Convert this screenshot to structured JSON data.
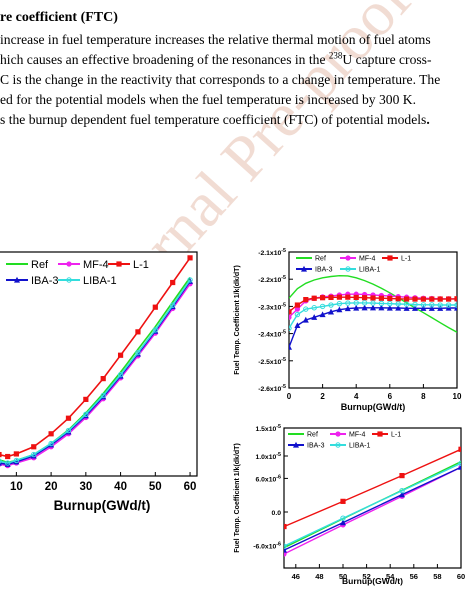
{
  "watermark": "Journal Pre-proof",
  "heading": "re coefficient (FTC)",
  "paragraph": {
    "line1": " increase in fuel temperature increases the relative thermal motion of fuel atoms",
    "line2_before": "hich causes an effective broadening of the resonances in the ",
    "line2_sup": "238",
    "line2_after": "U capture cross-",
    "line3": "C is the change in the reactivity that corresponds to a change in temperature. The",
    "line4": "ed for the potential models when the fuel temperature is increased by 300 K.",
    "line5_before": "s the burnup dependent fuel temperature coefficient (FTC) of potential models",
    "line5_period": "."
  },
  "colors": {
    "Ref": "#22dd22",
    "MF-4": "#ee22ee",
    "L-1": "#ee1111",
    "IBA-3": "#1111cc",
    "LIBA-1": "#33dddd",
    "watermark": "#f1dcd3"
  },
  "chart_data": [
    {
      "type": "line",
      "id": "main",
      "xlabel": "Burnup(GWd/t)",
      "ylabel": "",
      "xlim": [
        5,
        62
      ],
      "ylim": [
        -2.8,
        0.65
      ],
      "xticks": [
        10,
        20,
        30,
        40,
        50,
        60
      ],
      "xtick_labels": [
        "10",
        "20",
        "30",
        "40",
        "50",
        "60"
      ],
      "legend": [
        "Ref",
        "MF-4",
        "L-1",
        "IBA-3",
        "LIBA-1"
      ],
      "legend_placement": "top-left",
      "series": [
        {
          "name": "Ref",
          "x": [
            5,
            7.5,
            10,
            15,
            20,
            25,
            30,
            35,
            40,
            45,
            50,
            55,
            60
          ],
          "y": [
            -2.55,
            -2.59,
            -2.56,
            -2.47,
            -2.3,
            -2.09,
            -1.83,
            -1.53,
            -1.2,
            -0.85,
            -0.5,
            -0.12,
            0.26
          ]
        },
        {
          "name": "MF-4",
          "x": [
            5,
            7.5,
            10,
            15,
            20,
            25,
            30,
            35,
            40,
            45,
            50,
            55,
            60
          ],
          "y": [
            -2.62,
            -2.64,
            -2.6,
            -2.52,
            -2.35,
            -2.15,
            -1.9,
            -1.61,
            -1.29,
            -0.95,
            -0.6,
            -0.22,
            0.16
          ]
        },
        {
          "name": "L-1",
          "x": [
            5,
            7.5,
            10,
            15,
            20,
            25,
            30,
            35,
            40,
            45,
            50,
            55,
            60
          ],
          "y": [
            -2.47,
            -2.5,
            -2.46,
            -2.35,
            -2.15,
            -1.91,
            -1.62,
            -1.3,
            -0.94,
            -0.58,
            -0.2,
            0.18,
            0.56
          ]
        },
        {
          "name": "IBA-3",
          "x": [
            5,
            7.5,
            10,
            15,
            20,
            25,
            30,
            35,
            40,
            45,
            50,
            55,
            60
          ],
          "y": [
            -2.6,
            -2.62,
            -2.58,
            -2.49,
            -2.32,
            -2.12,
            -1.87,
            -1.58,
            -1.26,
            -0.92,
            -0.57,
            -0.19,
            0.2
          ]
        },
        {
          "name": "LIBA-1",
          "x": [
            5,
            7.5,
            10,
            15,
            20,
            25,
            30,
            35,
            40,
            45,
            50,
            55,
            60
          ],
          "y": [
            -2.57,
            -2.6,
            -2.56,
            -2.47,
            -2.3,
            -2.1,
            -1.85,
            -1.56,
            -1.24,
            -0.9,
            -0.55,
            -0.17,
            0.22
          ]
        }
      ]
    },
    {
      "type": "line",
      "id": "early",
      "xlabel": "Burnup(GWd/t)",
      "ylabel": "Fuel Temp. Coefficient 1/k(dk/dT)",
      "xlim": [
        0,
        10
      ],
      "ylim": [
        -2.6,
        -2.1
      ],
      "xticks": [
        0,
        2,
        4,
        6,
        8,
        10
      ],
      "xtick_labels": [
        "0",
        "2",
        "4",
        "6",
        "8",
        "10"
      ],
      "yticks": [
        -2.6,
        -2.5,
        -2.4,
        -2.3,
        -2.2,
        -2.1
      ],
      "ytick_labels": [
        "-2.6x10",
        "-2.5x10",
        "-2.4x10",
        "-2.3x10",
        "-2.2x10",
        "-2.1x10"
      ],
      "ytick_exponent": "-5",
      "legend": [
        "Ref",
        "MF-4",
        "L-1",
        "IBA-3",
        "LIBA-1"
      ],
      "legend_placement": "top",
      "series": [
        {
          "name": "Ref",
          "x": [
            0,
            0.5,
            1,
            1.5,
            2,
            2.5,
            3,
            3.5,
            4,
            4.5,
            5,
            5.5,
            6,
            6.5,
            7,
            7.5,
            8,
            8.5,
            9,
            9.5,
            10
          ],
          "y": [
            -2.27,
            -2.235,
            -2.215,
            -2.203,
            -2.195,
            -2.19,
            -2.187,
            -2.188,
            -2.195,
            -2.205,
            -2.218,
            -2.233,
            -2.25,
            -2.268,
            -2.287,
            -2.305,
            -2.323,
            -2.341,
            -2.36,
            -2.378,
            -2.395
          ]
        },
        {
          "name": "MF-4",
          "x": [
            0,
            0.5,
            1,
            1.5,
            2,
            2.5,
            3,
            3.5,
            4,
            4.5,
            5,
            5.5,
            6,
            6.5,
            7,
            7.5,
            8,
            8.5,
            9,
            9.5,
            10
          ],
          "y": [
            -2.34,
            -2.31,
            -2.28,
            -2.27,
            -2.265,
            -2.262,
            -2.258,
            -2.255,
            -2.255,
            -2.256,
            -2.258,
            -2.26,
            -2.262,
            -2.264,
            -2.266,
            -2.268,
            -2.27,
            -2.271,
            -2.272,
            -2.272,
            -2.273
          ]
        },
        {
          "name": "L-1",
          "x": [
            0,
            0.5,
            1,
            1.5,
            2,
            2.5,
            3,
            3.5,
            4,
            4.5,
            5,
            5.5,
            6,
            6.5,
            7,
            7.5,
            8,
            8.5,
            9,
            9.5,
            10
          ],
          "y": [
            -2.32,
            -2.295,
            -2.275,
            -2.27,
            -2.268,
            -2.267,
            -2.266,
            -2.266,
            -2.267,
            -2.268,
            -2.269,
            -2.27,
            -2.271,
            -2.272,
            -2.273,
            -2.273,
            -2.273,
            -2.273,
            -2.273,
            -2.273,
            -2.272
          ]
        },
        {
          "name": "IBA-3",
          "x": [
            0,
            0.5,
            1,
            1.5,
            2,
            2.5,
            3,
            3.5,
            4,
            4.5,
            5,
            5.5,
            6,
            6.5,
            7,
            7.5,
            8,
            8.5,
            9,
            9.5,
            10
          ],
          "y": [
            -2.45,
            -2.37,
            -2.35,
            -2.34,
            -2.33,
            -2.32,
            -2.312,
            -2.308,
            -2.306,
            -2.305,
            -2.305,
            -2.305,
            -2.306,
            -2.306,
            -2.307,
            -2.307,
            -2.307,
            -2.307,
            -2.307,
            -2.306,
            -2.306
          ]
        },
        {
          "name": "LIBA-1",
          "x": [
            0,
            0.5,
            1,
            1.5,
            2,
            2.5,
            3,
            3.5,
            4,
            4.5,
            5,
            5.5,
            6,
            6.5,
            7,
            7.5,
            8,
            8.5,
            9,
            9.5,
            10
          ],
          "y": [
            -2.38,
            -2.33,
            -2.31,
            -2.305,
            -2.3,
            -2.295,
            -2.29,
            -2.288,
            -2.287,
            -2.287,
            -2.288,
            -2.289,
            -2.29,
            -2.291,
            -2.292,
            -2.293,
            -2.294,
            -2.294,
            -2.295,
            -2.295,
            -2.295
          ]
        }
      ]
    },
    {
      "type": "line",
      "id": "late",
      "xlabel": "Burnup(GWd/t)",
      "ylabel": "Fuel Temp. Coefficient 1/k(dk/dT)",
      "xlim": [
        45,
        60
      ],
      "ylim": [
        -1e-05,
        1.5e-05
      ],
      "xticks": [
        46,
        48,
        50,
        52,
        54,
        56,
        58,
        60
      ],
      "xtick_labels": [
        "46",
        "48",
        "50",
        "52",
        "54",
        "56",
        "58",
        "60"
      ],
      "yticks": [
        -6e-06,
        0,
        6e-06,
        1e-05,
        1.5e-05
      ],
      "ytick_labels": [
        "-6.0x10",
        "0.0",
        "6.0x10",
        "1.0x10",
        "1.5x10"
      ],
      "ytick_exponents": [
        "-6",
        "",
        "-6",
        "-5",
        "-5"
      ],
      "legend": [
        "Ref",
        "MF-4",
        "L-1",
        "IBA-3",
        "LIBA-1"
      ],
      "legend_placement": "top",
      "series": [
        {
          "name": "Ref",
          "x": [
            45,
            50,
            55,
            60
          ],
          "y": [
            -6.4e-06,
            -1.2e-06,
            3.9e-06,
            9e-06
          ]
        },
        {
          "name": "MF-4",
          "x": [
            45,
            50,
            55,
            60
          ],
          "y": [
            -7.5e-06,
            -2.3e-06,
            2.8e-06,
            8e-06
          ]
        },
        {
          "name": "L-1",
          "x": [
            45,
            50,
            55,
            60
          ],
          "y": [
            -2.6e-06,
            1.9e-06,
            6.5e-06,
            1.12e-05
          ]
        },
        {
          "name": "IBA-3",
          "x": [
            45,
            50,
            55,
            60
          ],
          "y": [
            -6.8e-06,
            -1.9e-06,
            3.1e-06,
            8e-06
          ]
        },
        {
          "name": "LIBA-1",
          "x": [
            45,
            50,
            55,
            60
          ],
          "y": [
            -6.1e-06,
            -1.1e-06,
            3.8e-06,
            8.7e-06
          ]
        }
      ]
    }
  ]
}
